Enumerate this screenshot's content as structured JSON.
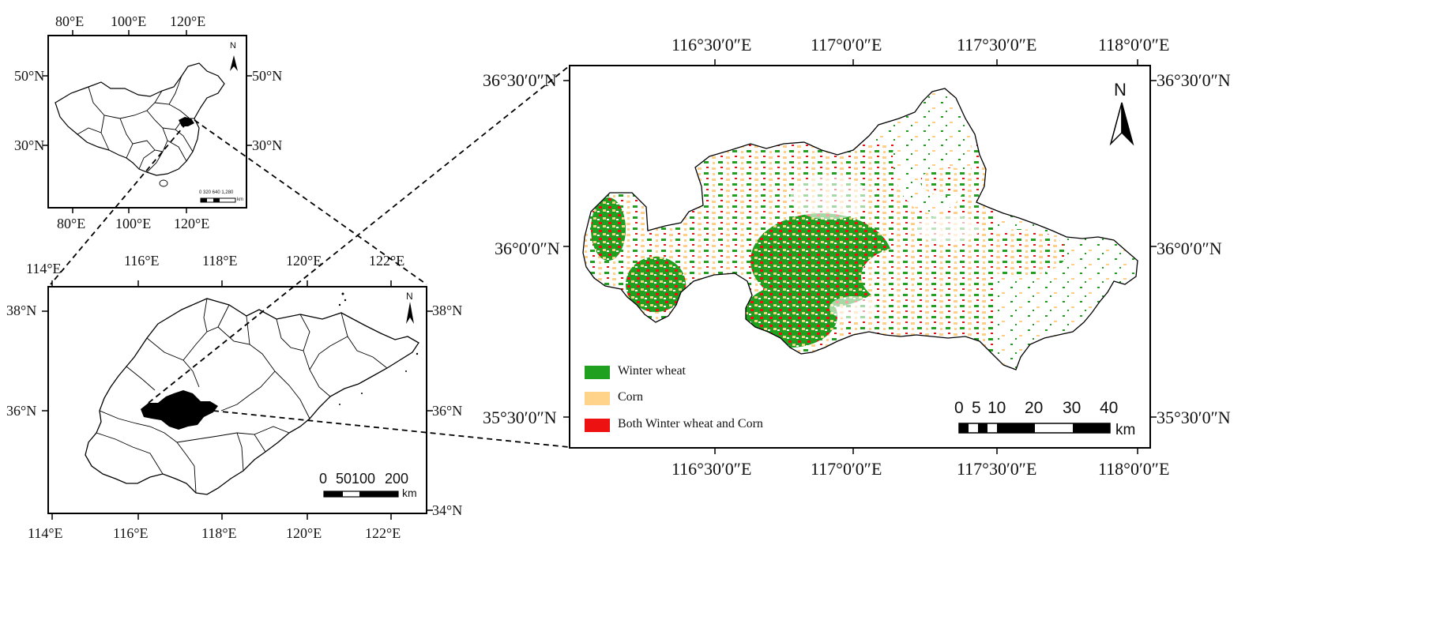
{
  "china_map": {
    "top_ticks": [
      "80°E",
      "100°E",
      "120°E"
    ],
    "bottom_ticks": [
      "80°E",
      "100°E",
      "120°E"
    ],
    "left_ticks": [
      "50°N",
      "30°N"
    ],
    "right_ticks": [
      "50°N",
      "30°N"
    ],
    "north_label": "N",
    "scale_numbers": "0  320 640     1,280",
    "scale_unit": "km"
  },
  "province_map": {
    "top_ticks": [
      "114°E",
      "116°E",
      "118°E",
      "120°E",
      "122°E"
    ],
    "bottom_ticks": [
      "114°E",
      "116°E",
      "118°E",
      "120°E",
      "122°E"
    ],
    "left_ticks": [
      "38°N",
      "36°N"
    ],
    "right_ticks": [
      "38°N",
      "36°N",
      "34°N"
    ],
    "north_label": "N",
    "scale_numbers": [
      "0",
      "50100",
      "200"
    ],
    "scale_unit": "km"
  },
  "study_map": {
    "top_ticks": [
      "116°30′0″E",
      "117°0′0″E",
      "117°30′0″E",
      "118°0′0″E"
    ],
    "bottom_ticks": [
      "116°30′0″E",
      "117°0′0″E",
      "117°30′0″E",
      "118°0′0″E"
    ],
    "left_ticks": [
      "36°30′0″N",
      "36°0′0″N",
      "35°30′0″N"
    ],
    "right_ticks": [
      "36°30′0″N",
      "36°0′0″N",
      "35°30′0″N"
    ],
    "north_label": "N",
    "scale_numbers": [
      "0",
      "5",
      "10",
      "20",
      "30",
      "40"
    ],
    "scale_unit": "km",
    "legend": [
      {
        "label": "Winter wheat",
        "color": "#1fa01f"
      },
      {
        "label": "Corn",
        "color": "#ffd48a"
      },
      {
        "label": "Both Winter wheat and Corn",
        "color": "#ee1111"
      }
    ]
  }
}
